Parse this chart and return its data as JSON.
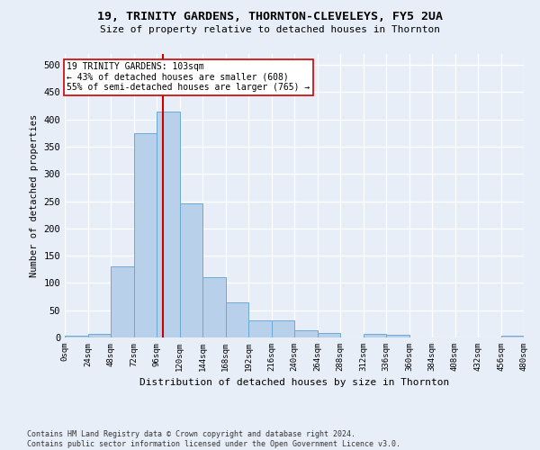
{
  "title": "19, TRINITY GARDENS, THORNTON-CLEVELEYS, FY5 2UA",
  "subtitle": "Size of property relative to detached houses in Thornton",
  "xlabel": "Distribution of detached houses by size in Thornton",
  "ylabel": "Number of detached properties",
  "bar_color": "#b8d0ea",
  "bar_edge_color": "#6aaad4",
  "background_color": "#e8eef8",
  "grid_color": "#ffffff",
  "property_size": 103,
  "property_line_color": "#cc0000",
  "annotation_text": "19 TRINITY GARDENS: 103sqm\n← 43% of detached houses are smaller (608)\n55% of semi-detached houses are larger (765) →",
  "annotation_box_color": "#ffffff",
  "annotation_border_color": "#cc0000",
  "footnote": "Contains HM Land Registry data © Crown copyright and database right 2024.\nContains public sector information licensed under the Open Government Licence v3.0.",
  "bin_edges": [
    0,
    24,
    48,
    72,
    96,
    120,
    144,
    168,
    192,
    216,
    240,
    264,
    288,
    312,
    336,
    360,
    384,
    408,
    432,
    456,
    480
  ],
  "bar_heights": [
    4,
    6,
    130,
    375,
    415,
    246,
    111,
    65,
    32,
    32,
    14,
    8,
    0,
    6,
    5,
    0,
    0,
    0,
    0,
    3
  ],
  "ylim": [
    0,
    520
  ],
  "yticks": [
    0,
    50,
    100,
    150,
    200,
    250,
    300,
    350,
    400,
    450,
    500
  ]
}
